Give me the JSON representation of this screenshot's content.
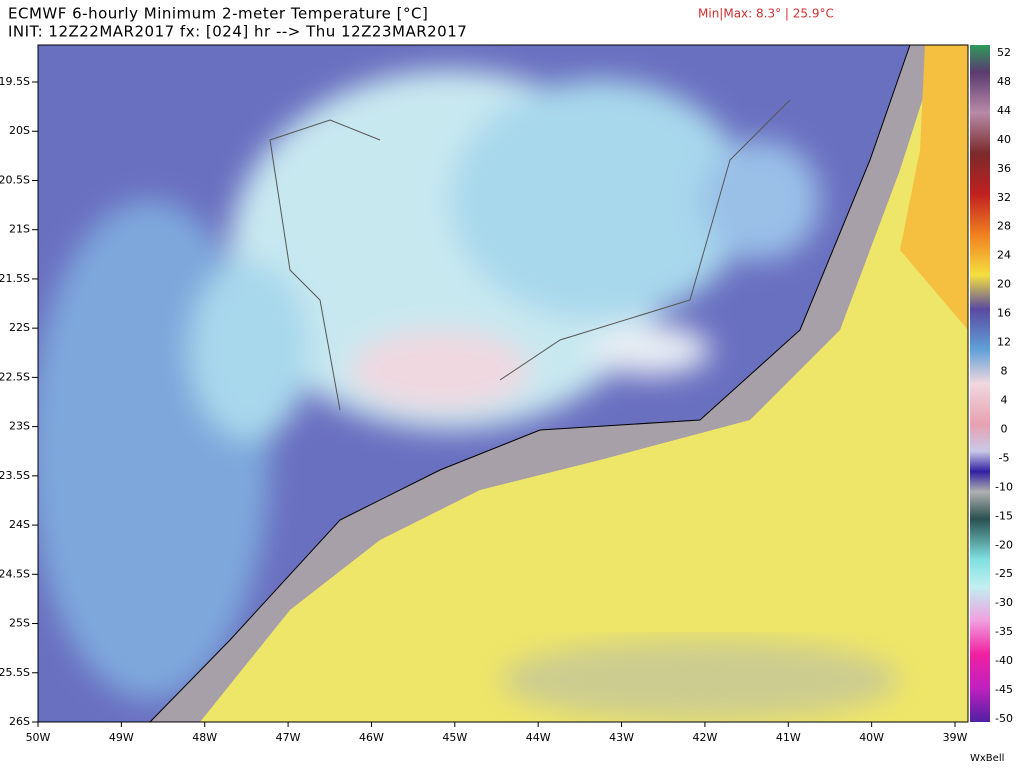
{
  "header": {
    "title": "ECMWF 6-hourly Minimum 2-meter Temperature [°C]",
    "subtitle": "INIT: 12Z22MAR2017 fx: [024] hr --> Thu 12Z23MAR2017",
    "minmax": "Min|Max: 8.3° | 25.9°C"
  },
  "map": {
    "lat_labels": [
      "19.5S",
      "20S",
      "20.5S",
      "21S",
      "21.5S",
      "22S",
      "22.5S",
      "23S",
      "23.5S",
      "24S",
      "24.5S",
      "25S",
      "25.5S",
      "26S"
    ],
    "lon_labels": [
      "50W",
      "49W",
      "48W",
      "47W",
      "46W",
      "45W",
      "44W",
      "43W",
      "42W",
      "41W",
      "40W",
      "39W"
    ]
  },
  "colorbar": {
    "labels": [
      52,
      48,
      44,
      40,
      36,
      32,
      28,
      24,
      20,
      16,
      12,
      8,
      4,
      0,
      -5,
      -10,
      -15,
      -20,
      -25,
      -30,
      -35,
      -40,
      -45,
      -50
    ]
  },
  "footer": {
    "credit": "WxBell"
  }
}
